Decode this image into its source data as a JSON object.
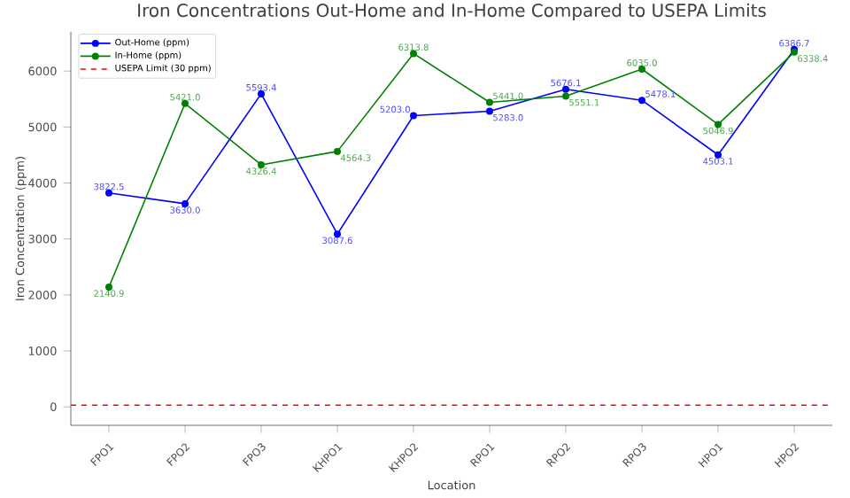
{
  "chart_data": {
    "type": "line",
    "title": "Iron Concentrations Out-Home and In-Home Compared to USEPA Limits",
    "xlabel": "Location",
    "ylabel": "Iron Concentration (ppm)",
    "categories": [
      "FPO1",
      "FPO2",
      "FPO3",
      "KHPO1",
      "KHPO2",
      "RPO1",
      "RPO2",
      "RPO3",
      "HPO1",
      "HPO2"
    ],
    "series": [
      {
        "name": "Out-Home (ppm)",
        "color": "#0000ff",
        "values": [
          3822.5,
          3630.0,
          5593.4,
          3087.6,
          5203.0,
          5283.0,
          5676.1,
          5478.1,
          4503.1,
          6386.7
        ],
        "value_labels": [
          "3822.5",
          "3630.0",
          "5593.4",
          "3087.6",
          "5203.0",
          "5283.0",
          "5676.1",
          "5478.1",
          "4503.1",
          "6386.7"
        ]
      },
      {
        "name": "In-Home (ppm)",
        "color": "#008000",
        "values": [
          2140.9,
          5421.0,
          4326.4,
          4564.3,
          6313.8,
          5441.0,
          5551.1,
          6035.0,
          5046.9,
          6338.4
        ],
        "value_labels": [
          "2140.9",
          "5421.0",
          "4326.4",
          "4564.3",
          "6313.8",
          "5441.0",
          "5551.1",
          "6035.0",
          "5046.9",
          "6338.4"
        ]
      }
    ],
    "ref_lines": [
      {
        "axis": "y",
        "value": 30,
        "label": "USEPA Limit (30 ppm)",
        "color": "#ff0000",
        "line_style": "dashed"
      }
    ],
    "ylim": [
      -330,
      6700
    ],
    "yticks": [
      0,
      1000,
      2000,
      3000,
      4000,
      5000,
      6000
    ],
    "marker": "circle",
    "line_style": "solid",
    "legend": "top left",
    "grid": false
  }
}
